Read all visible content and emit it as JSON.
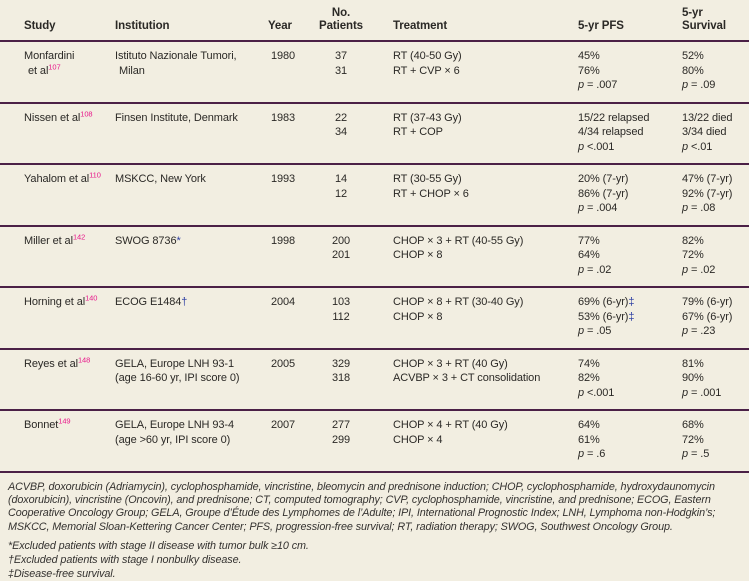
{
  "header": {
    "study": "Study",
    "institution": "Institution",
    "year": "Year",
    "patients_line1": "No.",
    "patients_line2": "Patients",
    "treatment": "Treatment",
    "pfs": "5-yr PFS",
    "survival_line1": "5-yr",
    "survival_line2": "Survival"
  },
  "rows": [
    {
      "study_lines": [
        "Monfardini",
        "et al"
      ],
      "ref": "107",
      "wrap_indent": true,
      "institution_lines": [
        "Istituto Nazionale Tumori,",
        "Milan"
      ],
      "year": "1980",
      "patients": [
        "37",
        "31"
      ],
      "treatments": [
        "RT (40-50 Gy)",
        "RT + CVP × 6"
      ],
      "pfs_values": [
        {
          "text": "45%"
        },
        {
          "text": "76%"
        }
      ],
      "pfs_p": "p = .007",
      "survival_values": [
        {
          "text": "52%"
        },
        {
          "text": "80%"
        }
      ],
      "survival_p": "p = .09"
    },
    {
      "study_lines": [
        "Nissen et al"
      ],
      "ref": "108",
      "institution_lines": [
        "Finsen Institute, Denmark"
      ],
      "year": "1983",
      "patients": [
        "22",
        "34"
      ],
      "treatments": [
        "RT (37-43 Gy)",
        "RT + COP"
      ],
      "pfs_values": [
        {
          "text": "15/22 relapsed"
        },
        {
          "text": "4/34 relapsed"
        }
      ],
      "pfs_p": "p <.001",
      "survival_values": [
        {
          "text": "13/22 died"
        },
        {
          "text": "3/34 died"
        }
      ],
      "survival_p": "p <.01"
    },
    {
      "study_lines": [
        "Yahalom et al"
      ],
      "ref": "110",
      "institution_lines": [
        "MSKCC, New York"
      ],
      "year": "1993",
      "patients": [
        "14",
        "12"
      ],
      "treatments": [
        "RT (30-55 Gy)",
        "RT + CHOP × 6"
      ],
      "pfs_values": [
        {
          "text": "20% (7-yr)"
        },
        {
          "text": "86% (7-yr)"
        }
      ],
      "pfs_p": "p = .004",
      "survival_values": [
        {
          "text": "47% (7-yr)"
        },
        {
          "text": "92% (7-yr)"
        }
      ],
      "survival_p": "p = .08"
    },
    {
      "study_lines": [
        "Miller et al"
      ],
      "ref": "142",
      "institution_lines": [
        "SWOG 8736"
      ],
      "institution_marker": "*",
      "year": "1998",
      "patients": [
        "200",
        "201"
      ],
      "treatments": [
        "CHOP × 3 + RT (40-55 Gy)",
        "CHOP × 8"
      ],
      "pfs_values": [
        {
          "text": "77%"
        },
        {
          "text": "64%"
        }
      ],
      "pfs_p": "p = .02",
      "survival_values": [
        {
          "text": "82%"
        },
        {
          "text": "72%"
        }
      ],
      "survival_p": "p = .02"
    },
    {
      "study_lines": [
        "Horning et al"
      ],
      "ref": "140",
      "institution_lines": [
        "ECOG E1484"
      ],
      "institution_marker": "†",
      "year": "2004",
      "patients": [
        "103",
        "112"
      ],
      "treatments": [
        "CHOP × 8 + RT (30-40 Gy)",
        "CHOP × 8"
      ],
      "pfs_values": [
        {
          "text": "69% (6-yr)",
          "marker": "‡"
        },
        {
          "text": "53% (6-yr)",
          "marker": "‡"
        }
      ],
      "pfs_p": "p = .05",
      "survival_values": [
        {
          "text": "79% (6-yr)"
        },
        {
          "text": "67% (6-yr)"
        }
      ],
      "survival_p": "p = .23"
    },
    {
      "study_lines": [
        "Reyes et al"
      ],
      "ref": "148",
      "institution_lines": [
        "GELA, Europe LNH 93-1",
        "(age 16-60 yr, IPI score 0)"
      ],
      "year": "2005",
      "patients": [
        "329",
        "318"
      ],
      "treatments": [
        "CHOP × 3 + RT (40 Gy)",
        "ACVBP × 3 + CT consolidation"
      ],
      "pfs_values": [
        {
          "text": "74%"
        },
        {
          "text": "82%"
        }
      ],
      "pfs_p": "p <.001",
      "survival_values": [
        {
          "text": "81%"
        },
        {
          "text": "90%"
        }
      ],
      "survival_p": "p = .001"
    },
    {
      "study_lines": [
        "Bonnet"
      ],
      "ref": "149",
      "institution_lines": [
        "GELA, Europe LNH 93-4",
        "(age >60 yr, IPI score 0)"
      ],
      "year": "2007",
      "patients": [
        "277",
        "299"
      ],
      "treatments": [
        "CHOP × 4 + RT (40 Gy)",
        "CHOP × 4"
      ],
      "pfs_values": [
        {
          "text": "64%"
        },
        {
          "text": "61%"
        }
      ],
      "pfs_p": "p = .6",
      "survival_values": [
        {
          "text": "68%"
        },
        {
          "text": "72%"
        }
      ],
      "survival_p": "p = .5"
    }
  ],
  "footnotes": {
    "abbreviations": "ACVBP, doxorubicin (Adriamycin), cyclophosphamide, vincristine, bleomycin and prednisone induction; CHOP, cyclophosphamide, hydroxydaunomycin (doxorubicin), vincristine (Oncovin), and prednisone; CT, computed tomography; CVP, cyclophosphamide, vincristine, and prednisone; ECOG, Eastern Cooperative Oncology Group; GELA, Groupe d’Étude des Lymphomes de l’Adulte; IPI, International Prognostic Index; LNH, Lymphoma non-Hodgkin’s; MSKCC, Memorial Sloan-Kettering Cancer Center; PFS, progression-free survival; RT, radiation therapy; SWOG, Southwest Oncology Group.",
    "notes": [
      "*Excluded patients with stage II disease with tumor bulk ≥10 cm.",
      "†Excluded patients with stage I nonbulky disease.",
      "‡Disease-free survival."
    ]
  },
  "colors": {
    "background": "#f2eee1",
    "rule": "#4b2046",
    "reference_pink": "#e8198b",
    "marker_blue": "#2e3fa3",
    "text": "#2b2926"
  }
}
